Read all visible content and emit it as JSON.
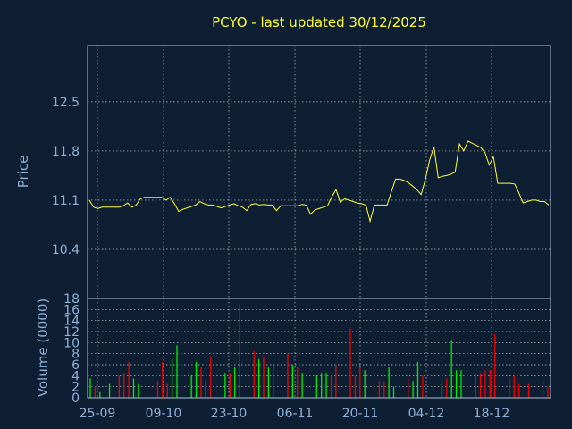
{
  "chart_data": [
    {
      "type": "line",
      "title": "PCYO - last updated 30/12/2025",
      "ylabel": "Price",
      "ylim": [
        9.7,
        13.3
      ],
      "yticks": [
        "12.5",
        "11.8",
        "11.1",
        "10.4"
      ],
      "series": [
        {
          "color": "#ffff33",
          "values": [
            11.1,
            11.0,
            10.98,
            11.0,
            11.0,
            11.0,
            11.0,
            11.0,
            11.02,
            11.06,
            11.0,
            11.03,
            11.12,
            11.14,
            11.14,
            11.14,
            11.14,
            11.14,
            11.1,
            11.14,
            11.05,
            10.94,
            10.97,
            10.99,
            11.01,
            11.03,
            11.08,
            11.05,
            11.03,
            11.03,
            11.01,
            10.99,
            11.01,
            11.03,
            11.05,
            11.02,
            11.0,
            10.95,
            11.04,
            11.05,
            11.03,
            11.04,
            11.03,
            11.03,
            10.95,
            11.02,
            11.02,
            11.02,
            11.02,
            11.02,
            11.04,
            11.03,
            10.9,
            10.96,
            10.98,
            11.0,
            11.02,
            11.15,
            11.25,
            11.07,
            11.12,
            11.1,
            11.08,
            11.06,
            11.05,
            11.03,
            10.8,
            11.03,
            11.03,
            11.03,
            11.03,
            11.22,
            11.4,
            11.4,
            11.38,
            11.35,
            11.3,
            11.25,
            11.18,
            11.4,
            11.67,
            11.86,
            11.42,
            11.44,
            11.45,
            11.47,
            11.5,
            11.9,
            11.8,
            11.94,
            11.91,
            11.88,
            11.85,
            11.78,
            11.6,
            11.72,
            11.34,
            11.34,
            11.34,
            11.34,
            11.33,
            11.2,
            11.06,
            11.08,
            11.1,
            11.1,
            11.08,
            11.08,
            11.03
          ]
        }
      ]
    },
    {
      "type": "bar",
      "ylabel": "Volume (0000)",
      "ylim": [
        0,
        18
      ],
      "yticks": [
        "18",
        "16",
        "14",
        "12",
        "10",
        "8",
        "6",
        "4",
        "2",
        "0"
      ],
      "x_labels": [
        "25-09",
        "09-10",
        "23-10",
        "06-11",
        "20-11",
        "04-12",
        "18-12"
      ],
      "up_color": "#00ee00",
      "down_color": "#ee0000",
      "values": [
        3.5,
        2.0,
        1.0,
        0.0,
        2.5,
        0.0,
        4.0,
        4.5,
        6.5,
        3.5,
        2.5,
        0.0,
        0.0,
        0.0,
        3.0,
        6.5,
        2.5,
        7.0,
        9.5,
        0.0,
        0.0,
        4.0,
        6.5,
        5.5,
        3.0,
        7.5,
        0.0,
        0.0,
        4.5,
        4.5,
        5.5,
        17.0,
        0.0,
        0.0,
        8.5,
        7.0,
        7.5,
        5.5,
        6.0,
        0.0,
        0.0,
        8.0,
        6.0,
        5.5,
        4.5,
        0.0,
        0.0,
        4.0,
        4.5,
        4.5,
        4.0,
        6.0,
        0.0,
        0.0,
        12.5,
        4.0,
        5.5,
        5.0,
        0.0,
        0.0,
        3.0,
        3.0,
        5.5,
        2.0,
        0.0,
        0.0,
        3.5,
        3.0,
        6.5,
        4.0,
        0.0,
        0.0,
        0.0,
        2.5,
        3.5,
        10.5,
        5.0,
        5.0,
        0.0,
        0.0,
        4.5,
        4.5,
        5.0,
        5.0,
        11.5,
        0.0,
        0.0,
        3.5,
        4.0,
        2.5,
        0.0,
        2.5,
        0.0,
        0.0,
        3.0,
        2.0
      ],
      "up": [
        1,
        0,
        1,
        0,
        1,
        0,
        0,
        0,
        0,
        1,
        1,
        0,
        0,
        0,
        0,
        0,
        0,
        1,
        1,
        0,
        0,
        1,
        1,
        0,
        1,
        0,
        0,
        0,
        1,
        0,
        1,
        0,
        0,
        0,
        0,
        1,
        0,
        1,
        0,
        0,
        0,
        0,
        1,
        0,
        1,
        0,
        0,
        1,
        1,
        1,
        0,
        0,
        0,
        0,
        0,
        0,
        0,
        1,
        0,
        0,
        0,
        0,
        1,
        1,
        0,
        0,
        0,
        1,
        1,
        0,
        0,
        0,
        0,
        1,
        0,
        1,
        1,
        1,
        0,
        0,
        0,
        0,
        0,
        0,
        0,
        0,
        0,
        0,
        0,
        0,
        0,
        0,
        0,
        0,
        0,
        0
      ]
    }
  ]
}
